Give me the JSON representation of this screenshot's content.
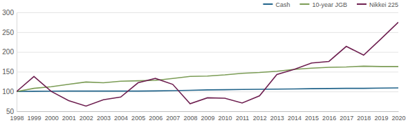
{
  "chart_data": {
    "type": "line",
    "categories": [
      "1998",
      "1999",
      "2000",
      "2001",
      "2002",
      "2003",
      "2004",
      "2005",
      "2006",
      "2007",
      "2008",
      "2009",
      "2010",
      "2011",
      "2012",
      "2013",
      "2014",
      "2015",
      "2016",
      "2017",
      "2018",
      "2019",
      "2020"
    ],
    "series": [
      {
        "name": "Cash",
        "color": "#20638a",
        "values": [
          100,
          100.5,
          100.7,
          101,
          101,
          101,
          101,
          101,
          101.5,
          102,
          103,
          104,
          104.5,
          105,
          105.5,
          106,
          106.5,
          107,
          107.5,
          108,
          108,
          108.5,
          109
        ]
      },
      {
        "name": "10-year JGB",
        "color": "#7b9c55",
        "values": [
          100,
          108,
          112,
          118,
          124,
          122,
          126,
          127,
          128,
          133,
          138,
          139,
          142,
          146,
          148,
          151,
          156,
          159,
          161,
          162,
          164,
          163,
          163
        ]
      },
      {
        "name": "Nikkei 225",
        "color": "#6e1f50",
        "values": [
          100,
          138,
          100,
          77,
          63,
          79,
          86,
          122,
          133,
          118,
          69,
          84,
          83,
          71,
          89,
          143,
          156,
          172,
          176,
          214,
          192,
          233,
          275
        ]
      }
    ],
    "ylim": [
      50,
      300
    ],
    "yticks": [
      50,
      100,
      150,
      200,
      250,
      300
    ],
    "grid": true,
    "legend": "top-right"
  }
}
